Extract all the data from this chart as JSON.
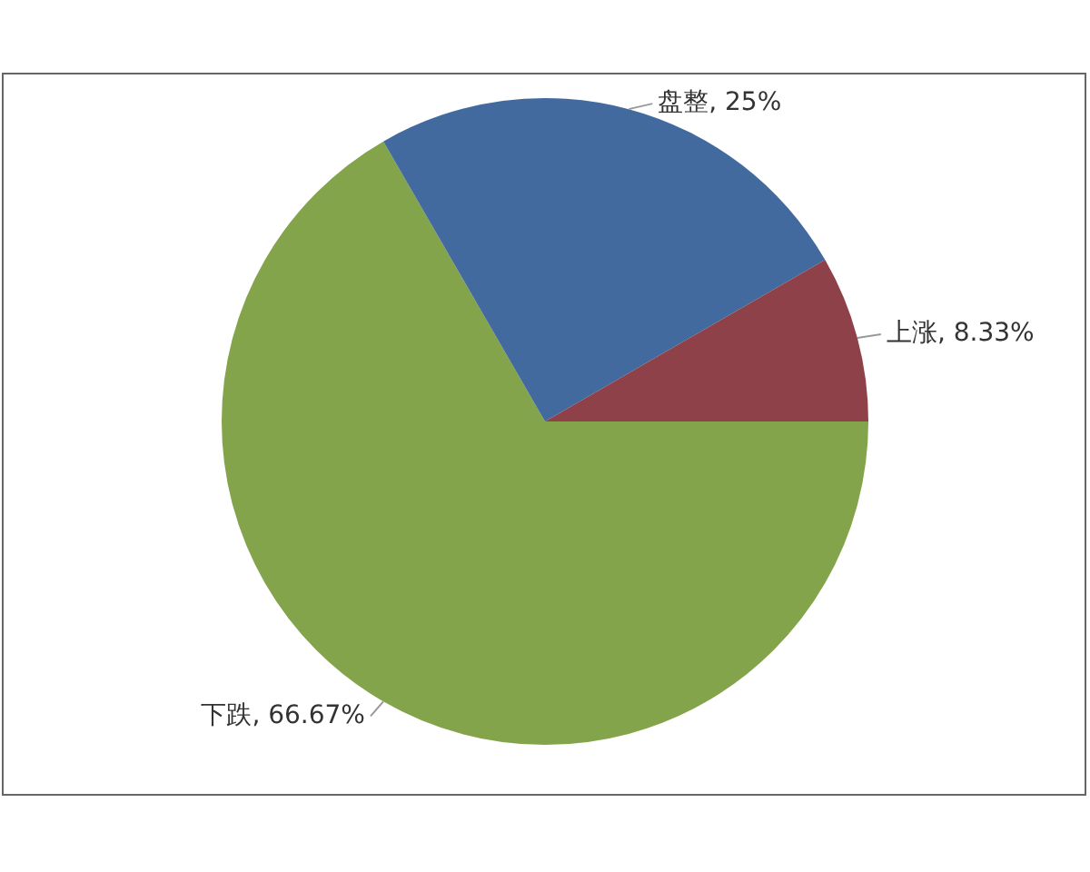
{
  "chart_data": {
    "type": "pie",
    "categories": [
      "下跌",
      "盘整",
      "上涨"
    ],
    "values": [
      66.67,
      25,
      8.33
    ],
    "colors": [
      "#84a44c",
      "#426a9f",
      "#8f4149"
    ],
    "value_labels": [
      ", 66.67%",
      ", 25%",
      ", 8.33%"
    ],
    "legend": false
  }
}
